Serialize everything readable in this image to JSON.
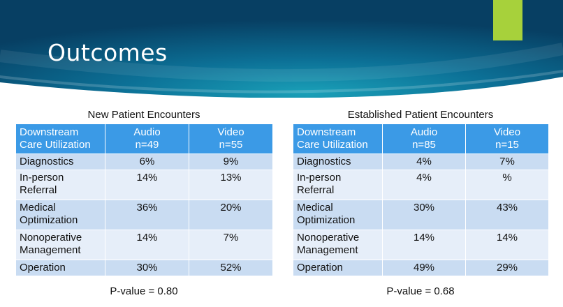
{
  "slide": {
    "title": "Outcomes"
  },
  "new_table": {
    "caption": "New Patient Encounters",
    "headers": [
      "Downstream\nCare Utilization",
      "Audio\nn=49",
      "Video\nn=55"
    ],
    "rows": [
      [
        "Diagnostics",
        "6%",
        "9%"
      ],
      [
        "In-person\nReferral",
        "14%",
        "13%"
      ],
      [
        "Medical\nOptimization",
        "36%",
        "20%"
      ],
      [
        "Nonoperative\nManagement",
        "14%",
        "7%"
      ],
      [
        "Operation",
        "30%",
        "52%"
      ]
    ],
    "pvalue": "P-value = 0.80"
  },
  "est_table": {
    "caption": "Established Patient Encounters",
    "headers": [
      "Downstream\nCare Utilization",
      "Audio\nn=85",
      "Video\nn=15"
    ],
    "rows": [
      [
        "Diagnostics",
        "4%",
        "7%"
      ],
      [
        "In-person\nReferral",
        "4%",
        "%"
      ],
      [
        "Medical\nOptimization",
        "30%",
        "43%"
      ],
      [
        "Nonoperative\nManagement",
        "14%",
        "14%"
      ],
      [
        "Operation",
        "49%",
        "29%"
      ]
    ],
    "pvalue": "P-value = 0.68"
  },
  "colors": {
    "header_fill": "#3b9ae6",
    "row_dark": "#c9dcf2",
    "row_light": "#e6eef9",
    "accent": "#a7d13b",
    "banner": "#0a5a82"
  }
}
